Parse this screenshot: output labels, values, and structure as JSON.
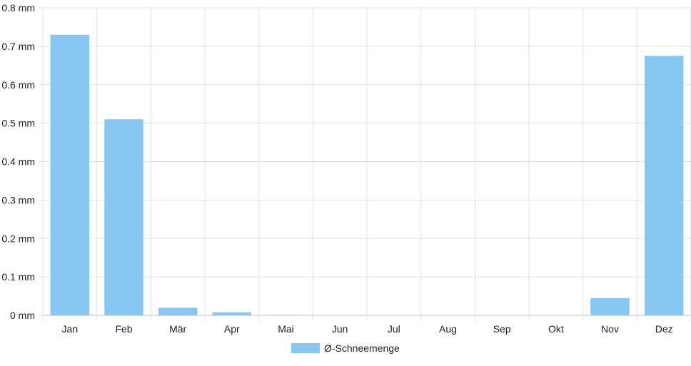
{
  "chart_data": {
    "type": "bar",
    "categories": [
      "Jan",
      "Feb",
      "Mär",
      "Apr",
      "Mai",
      "Jun",
      "Jul",
      "Aug",
      "Sep",
      "Okt",
      "Nov",
      "Dez"
    ],
    "series": [
      {
        "name": "Ø-Schneemenge",
        "values": [
          0.73,
          0.51,
          0.02,
          0.008,
          0.001,
          0,
          0,
          0,
          0,
          0,
          0.045,
          0.675
        ]
      }
    ],
    "y_ticks": [
      "0 mm",
      "0.1 mm",
      "0.2 mm",
      "0.3 mm",
      "0.4 mm",
      "0.5 mm",
      "0.6 mm",
      "0.7 mm",
      "0.8 mm"
    ],
    "ylim": [
      0,
      0.8
    ],
    "grid": true,
    "legend_position": "bottom",
    "colors": {
      "bar": "#87c7f2",
      "grid": "#e1e1e1",
      "axis": "#bfbfbf"
    }
  }
}
